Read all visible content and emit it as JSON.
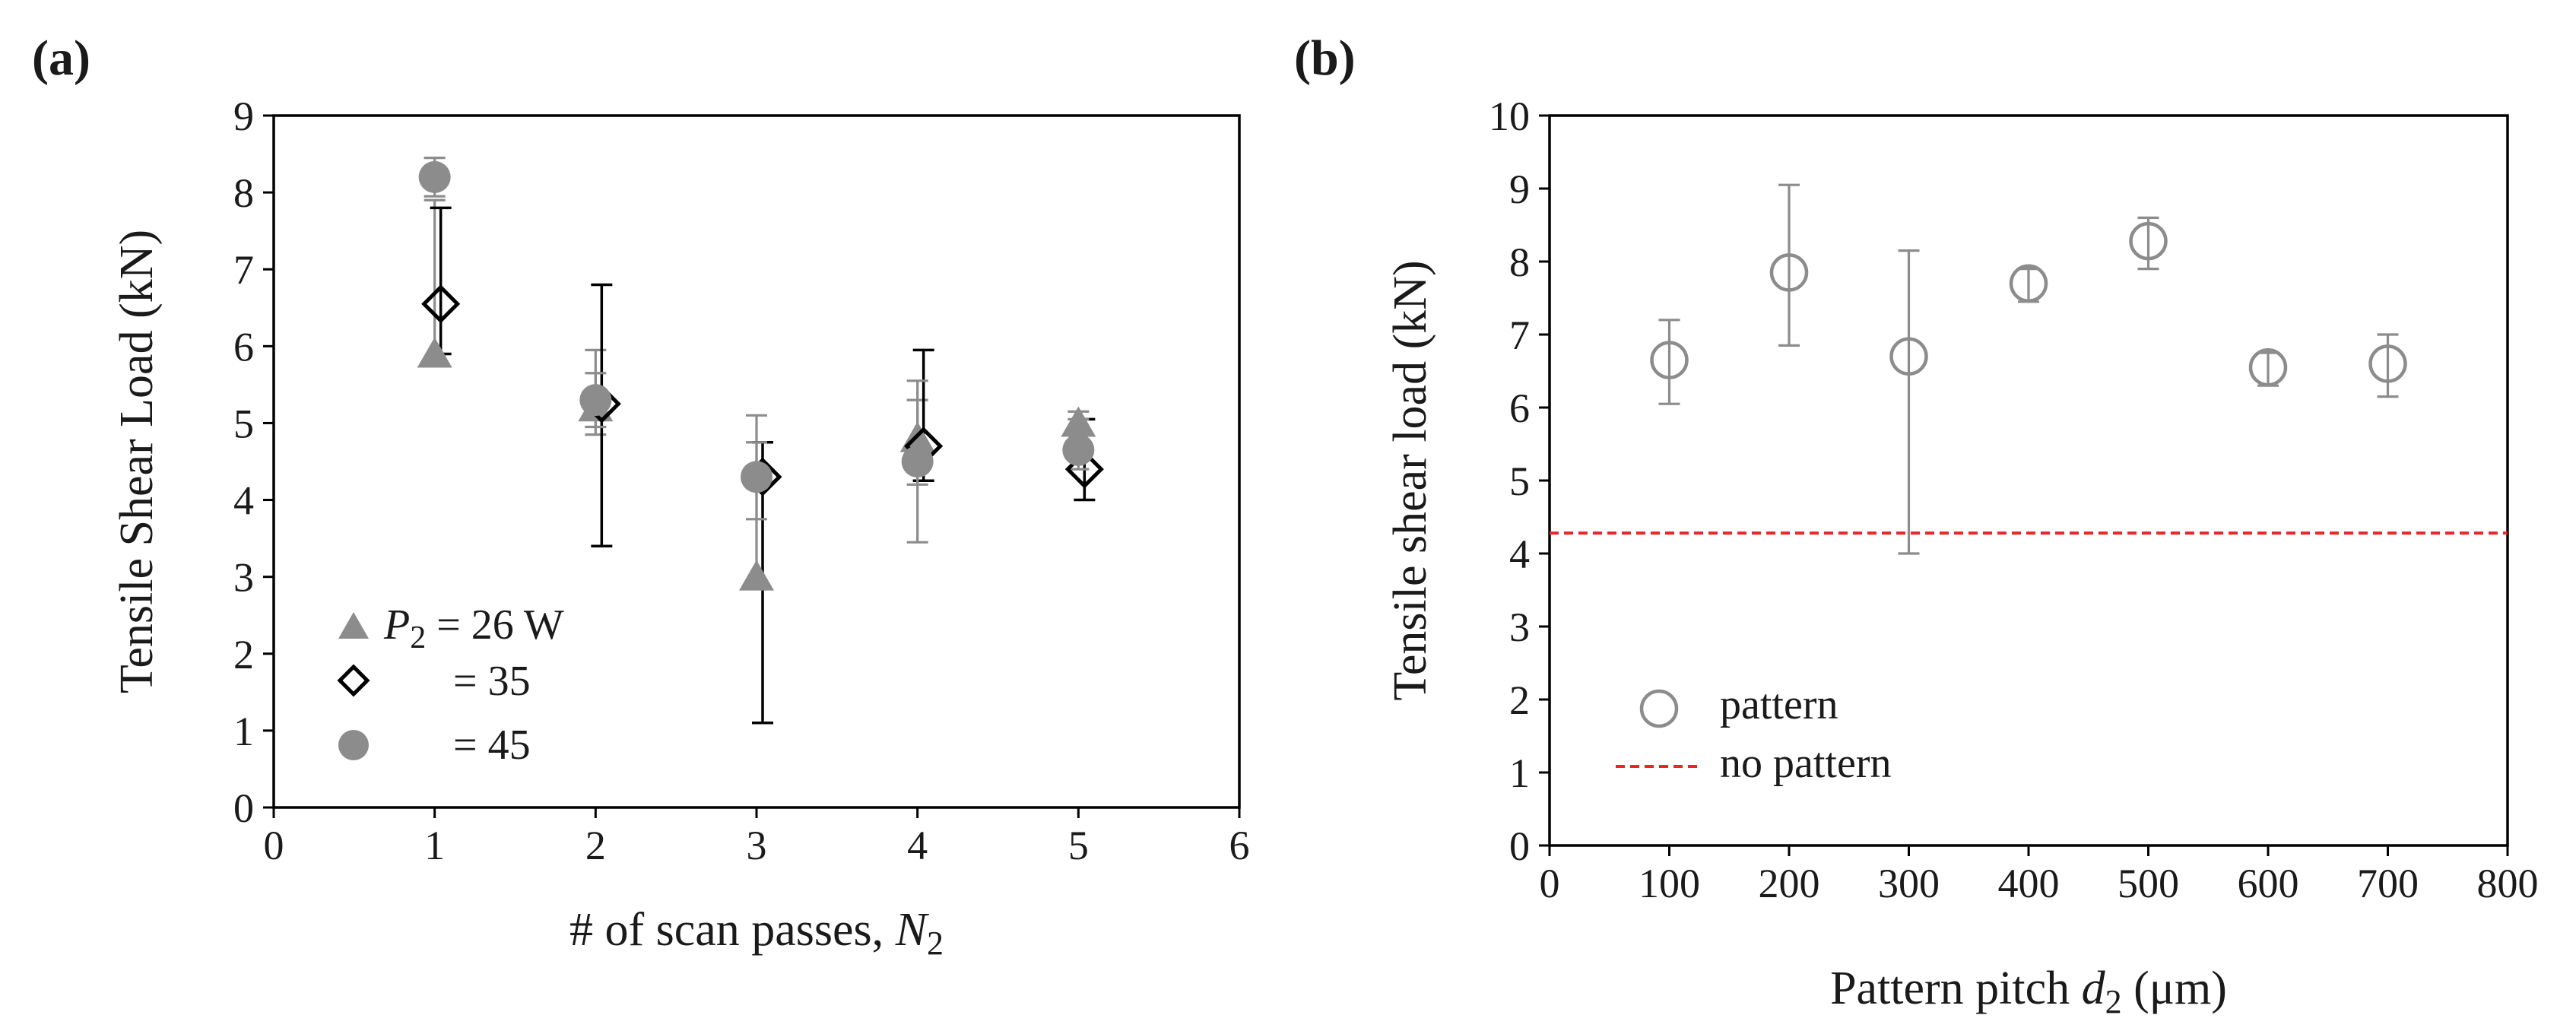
{
  "panels": {
    "a": {
      "label": "(a)"
    },
    "b": {
      "label": "(b)"
    }
  },
  "chart_data": [
    {
      "id": "a",
      "type": "scatter",
      "title": "",
      "xlabel": "# of scan passes, N2",
      "xlabel_parts": {
        "main": "# of scan passes, ",
        "var": "N",
        "sub": "2"
      },
      "ylabel": "Tensile Shear Load  (kN)",
      "xlim": [
        0,
        6
      ],
      "ylim": [
        0,
        9
      ],
      "xticks": [
        0,
        1,
        2,
        3,
        4,
        5,
        6
      ],
      "yticks": [
        0,
        1,
        2,
        3,
        4,
        5,
        6,
        7,
        8,
        9
      ],
      "grid": false,
      "legend_position": "bottom-left",
      "legend": [
        {
          "marker": "triangle",
          "prefix": "P",
          "sub": "2",
          "text": " = 26 W"
        },
        {
          "marker": "diamond",
          "text": "= 35"
        },
        {
          "marker": "circle",
          "text": "= 45"
        }
      ],
      "series": [
        {
          "name": "P2 = 26 W",
          "marker": "triangle",
          "color": "#8c8c8c",
          "x": [
            1,
            2,
            3,
            4,
            5
          ],
          "y": [
            5.9,
            5.2,
            3.0,
            4.8,
            5.0
          ],
          "err_low": [
            5.85,
            4.85,
            2.95,
            4.2,
            4.7
          ],
          "err_high": [
            7.9,
            5.95,
            5.1,
            5.3,
            5.15
          ]
        },
        {
          "name": "P2 = 35 W",
          "marker": "diamond",
          "color": "#000000",
          "x": [
            1,
            2,
            3,
            4,
            5
          ],
          "y": [
            6.55,
            5.25,
            4.3,
            4.7,
            4.4
          ],
          "err_low": [
            5.9,
            3.4,
            1.1,
            4.25,
            4.0
          ],
          "err_high": [
            7.8,
            6.8,
            4.75,
            5.95,
            5.05
          ]
        },
        {
          "name": "P2 = 45 W",
          "marker": "circle",
          "color": "#8c8c8c",
          "x": [
            1,
            2,
            3,
            4,
            5
          ],
          "y": [
            8.2,
            5.3,
            4.3,
            4.5,
            4.65
          ],
          "err_low": [
            7.95,
            4.95,
            3.75,
            3.45,
            4.4
          ],
          "err_high": [
            8.45,
            5.65,
            4.75,
            5.55,
            5.05
          ]
        }
      ]
    },
    {
      "id": "b",
      "type": "scatter",
      "title": "",
      "xlabel": "Pattern pitch d2 (μm)",
      "xlabel_parts": {
        "main": "Pattern  pitch ",
        "var": "d",
        "sub": "2",
        "unit": " (μm)"
      },
      "ylabel": "Tensile shear load (kN)",
      "xlim": [
        0,
        800
      ],
      "ylim": [
        0,
        10
      ],
      "xticks": [
        0,
        100,
        200,
        300,
        400,
        500,
        600,
        700,
        800
      ],
      "yticks": [
        0,
        1,
        2,
        3,
        4,
        5,
        6,
        7,
        8,
        9,
        10
      ],
      "grid": false,
      "legend_position": "bottom-left",
      "legend": [
        {
          "marker": "open-circle",
          "text": "pattern"
        },
        {
          "marker": "dashed-line",
          "text": "no pattern"
        }
      ],
      "series": [
        {
          "name": "pattern",
          "marker": "open-circle",
          "color": "#8c8c8c",
          "x": [
            100,
            200,
            300,
            400,
            500,
            600,
            700
          ],
          "y": [
            6.65,
            7.85,
            6.7,
            7.7,
            8.28,
            6.55,
            6.6
          ],
          "err_low": [
            6.05,
            6.85,
            4.0,
            7.45,
            7.9,
            6.3,
            6.15
          ],
          "err_high": [
            7.2,
            9.05,
            8.15,
            7.9,
            8.6,
            6.75,
            7.0
          ]
        }
      ],
      "reference_lines": [
        {
          "name": "no pattern",
          "y": 4.28,
          "style": "dashed",
          "color": "#e8262a"
        }
      ]
    }
  ]
}
